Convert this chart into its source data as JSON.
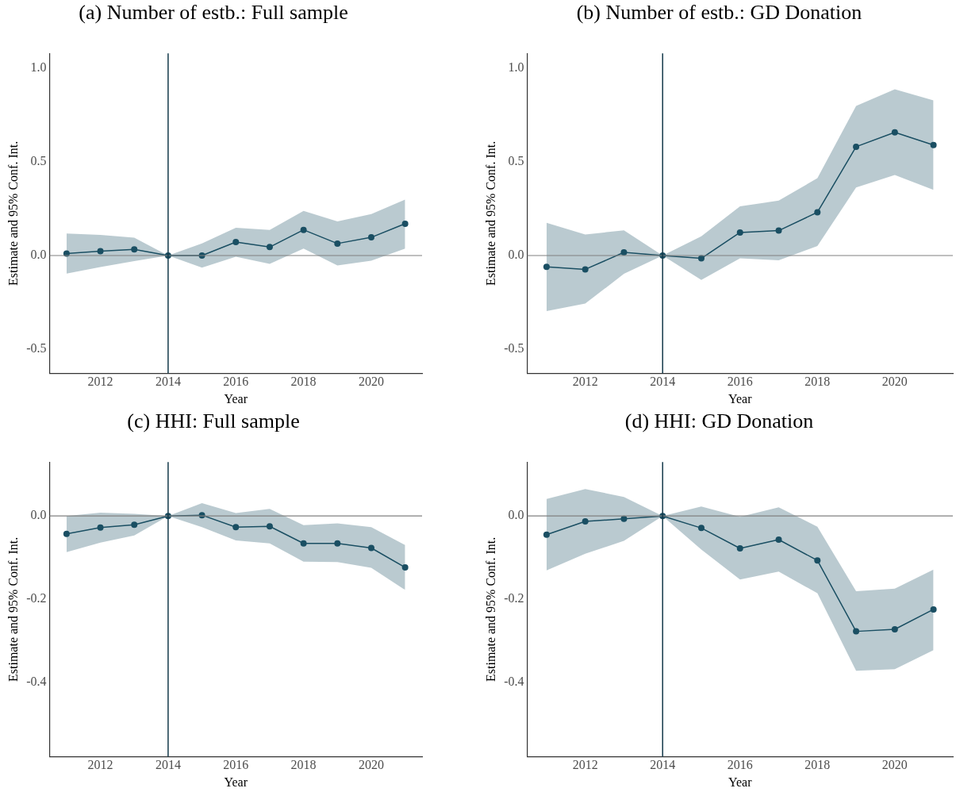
{
  "chart_data": [
    {
      "type": "line",
      "title": "(a) Number of estb.: Full sample",
      "xlabel": "Year",
      "ylabel": "Estimate and 95% Conf. Int.",
      "marker": "circle",
      "grid": false,
      "x": [
        2011,
        2012,
        2013,
        2014,
        2015,
        2016,
        2017,
        2018,
        2019,
        2020,
        2021
      ],
      "series": [
        {
          "color": "#1b4f63",
          "values": [
            0.011,
            0.023,
            0.033,
            0,
            0,
            0.072,
            0.045,
            0.137,
            0.064,
            0.097,
            0.17
          ],
          "lower": [
            -0.097,
            -0.062,
            -0.03,
            0,
            -0.065,
            -0.006,
            -0.045,
            0.037,
            -0.053,
            -0.028,
            0.037
          ],
          "upper": [
            0.118,
            0.11,
            0.095,
            0,
            0.065,
            0.148,
            0.137,
            0.238,
            0.182,
            0.221,
            0.299
          ]
        }
      ],
      "xlim": [
        2010.5,
        2021.5
      ],
      "ylim": [
        -0.63,
        1.08
      ],
      "xticks": [
        2012,
        2014,
        2016,
        2018,
        2020
      ],
      "yticks": [
        {
          "value": -0.5,
          "label": "-0.5"
        },
        {
          "value": 0,
          "label": "0.0"
        },
        {
          "value": 0.5,
          "label": "0.5"
        },
        {
          "value": 1,
          "label": "1.0"
        }
      ],
      "ref_lines": [
        {
          "axis": "y",
          "value": 0,
          "color": "#808080"
        },
        {
          "axis": "x",
          "value": 2014,
          "color": "#13394a"
        }
      ]
    },
    {
      "type": "line",
      "title": "(b) Number of estb.: GD Donation",
      "xlabel": "Year",
      "ylabel": "Estimate and 95% Conf. Int.",
      "marker": "circle",
      "grid": false,
      "x": [
        2011,
        2012,
        2013,
        2014,
        2015,
        2016,
        2017,
        2018,
        2019,
        2020,
        2021
      ],
      "series": [
        {
          "color": "#1b4f63",
          "values": [
            -0.061,
            -0.074,
            0.017,
            0,
            -0.015,
            0.123,
            0.133,
            0.231,
            0.581,
            0.658,
            0.59
          ],
          "lower": [
            -0.297,
            -0.257,
            -0.098,
            0,
            -0.13,
            -0.015,
            -0.026,
            0.051,
            0.363,
            0.43,
            0.351
          ],
          "upper": [
            0.175,
            0.112,
            0.135,
            0,
            0.103,
            0.263,
            0.293,
            0.413,
            0.799,
            0.888,
            0.829
          ]
        }
      ],
      "xlim": [
        2010.5,
        2021.5
      ],
      "ylim": [
        -0.63,
        1.08
      ],
      "xticks": [
        2012,
        2014,
        2016,
        2018,
        2020
      ],
      "yticks": [
        {
          "value": -0.5,
          "label": "-0.5"
        },
        {
          "value": 0,
          "label": "0.0"
        },
        {
          "value": 0.5,
          "label": "0.5"
        },
        {
          "value": 1,
          "label": "1.0"
        }
      ],
      "ref_lines": [
        {
          "axis": "y",
          "value": 0,
          "color": "#808080"
        },
        {
          "axis": "x",
          "value": 2014,
          "color": "#13394a"
        }
      ]
    },
    {
      "type": "line",
      "title": "(c) HHI: Full sample",
      "xlabel": "Year",
      "ylabel": "Estimate and 95% Conf. Int.",
      "marker": "circle",
      "grid": false,
      "x": [
        2011,
        2012,
        2013,
        2014,
        2015,
        2016,
        2017,
        2018,
        2019,
        2020,
        2021
      ],
      "series": [
        {
          "color": "#1b4f63",
          "values": [
            -0.043,
            -0.028,
            -0.021,
            0,
            0.002,
            -0.027,
            -0.025,
            -0.066,
            -0.066,
            -0.077,
            -0.124
          ],
          "lower": [
            -0.087,
            -0.064,
            -0.047,
            0,
            -0.027,
            -0.059,
            -0.066,
            -0.11,
            -0.111,
            -0.125,
            -0.178
          ],
          "upper": [
            0,
            0.008,
            0.005,
            0,
            0.031,
            0.007,
            0.017,
            -0.022,
            -0.018,
            -0.027,
            -0.07
          ]
        }
      ],
      "xlim": [
        2010.5,
        2021.5
      ],
      "ylim": [
        -0.58,
        0.13
      ],
      "xticks": [
        2012,
        2014,
        2016,
        2018,
        2020
      ],
      "yticks": [
        {
          "value": -0.4,
          "label": "-0.4"
        },
        {
          "value": -0.2,
          "label": "-0.2"
        },
        {
          "value": 0,
          "label": "0.0"
        }
      ],
      "ref_lines": [
        {
          "axis": "y",
          "value": 0,
          "color": "#808080"
        },
        {
          "axis": "x",
          "value": 2014,
          "color": "#13394a"
        }
      ]
    },
    {
      "type": "line",
      "title": "(d) HHI: GD Donation",
      "xlabel": "Year",
      "ylabel": "Estimate and 95% Conf. Int.",
      "marker": "circle",
      "grid": false,
      "x": [
        2011,
        2012,
        2013,
        2014,
        2015,
        2016,
        2017,
        2018,
        2019,
        2020,
        2021
      ],
      "series": [
        {
          "color": "#1b4f63",
          "values": [
            -0.045,
            -0.013,
            -0.007,
            0,
            -0.029,
            -0.078,
            -0.057,
            -0.107,
            -0.278,
            -0.273,
            -0.225
          ],
          "lower": [
            -0.131,
            -0.091,
            -0.06,
            0,
            -0.081,
            -0.153,
            -0.134,
            -0.186,
            -0.373,
            -0.369,
            -0.323
          ],
          "upper": [
            0.041,
            0.065,
            0.046,
            0,
            0.023,
            -0.002,
            0.021,
            -0.026,
            -0.181,
            -0.175,
            -0.129
          ]
        }
      ],
      "xlim": [
        2010.5,
        2021.5
      ],
      "ylim": [
        -0.58,
        0.13
      ],
      "xticks": [
        2012,
        2014,
        2016,
        2018,
        2020
      ],
      "yticks": [
        {
          "value": -0.4,
          "label": "-0.4"
        },
        {
          "value": -0.2,
          "label": "-0.2"
        },
        {
          "value": 0,
          "label": "0.0"
        }
      ],
      "ref_lines": [
        {
          "axis": "y",
          "value": 0,
          "color": "#808080"
        },
        {
          "axis": "x",
          "value": 2014,
          "color": "#13394a"
        }
      ]
    }
  ]
}
